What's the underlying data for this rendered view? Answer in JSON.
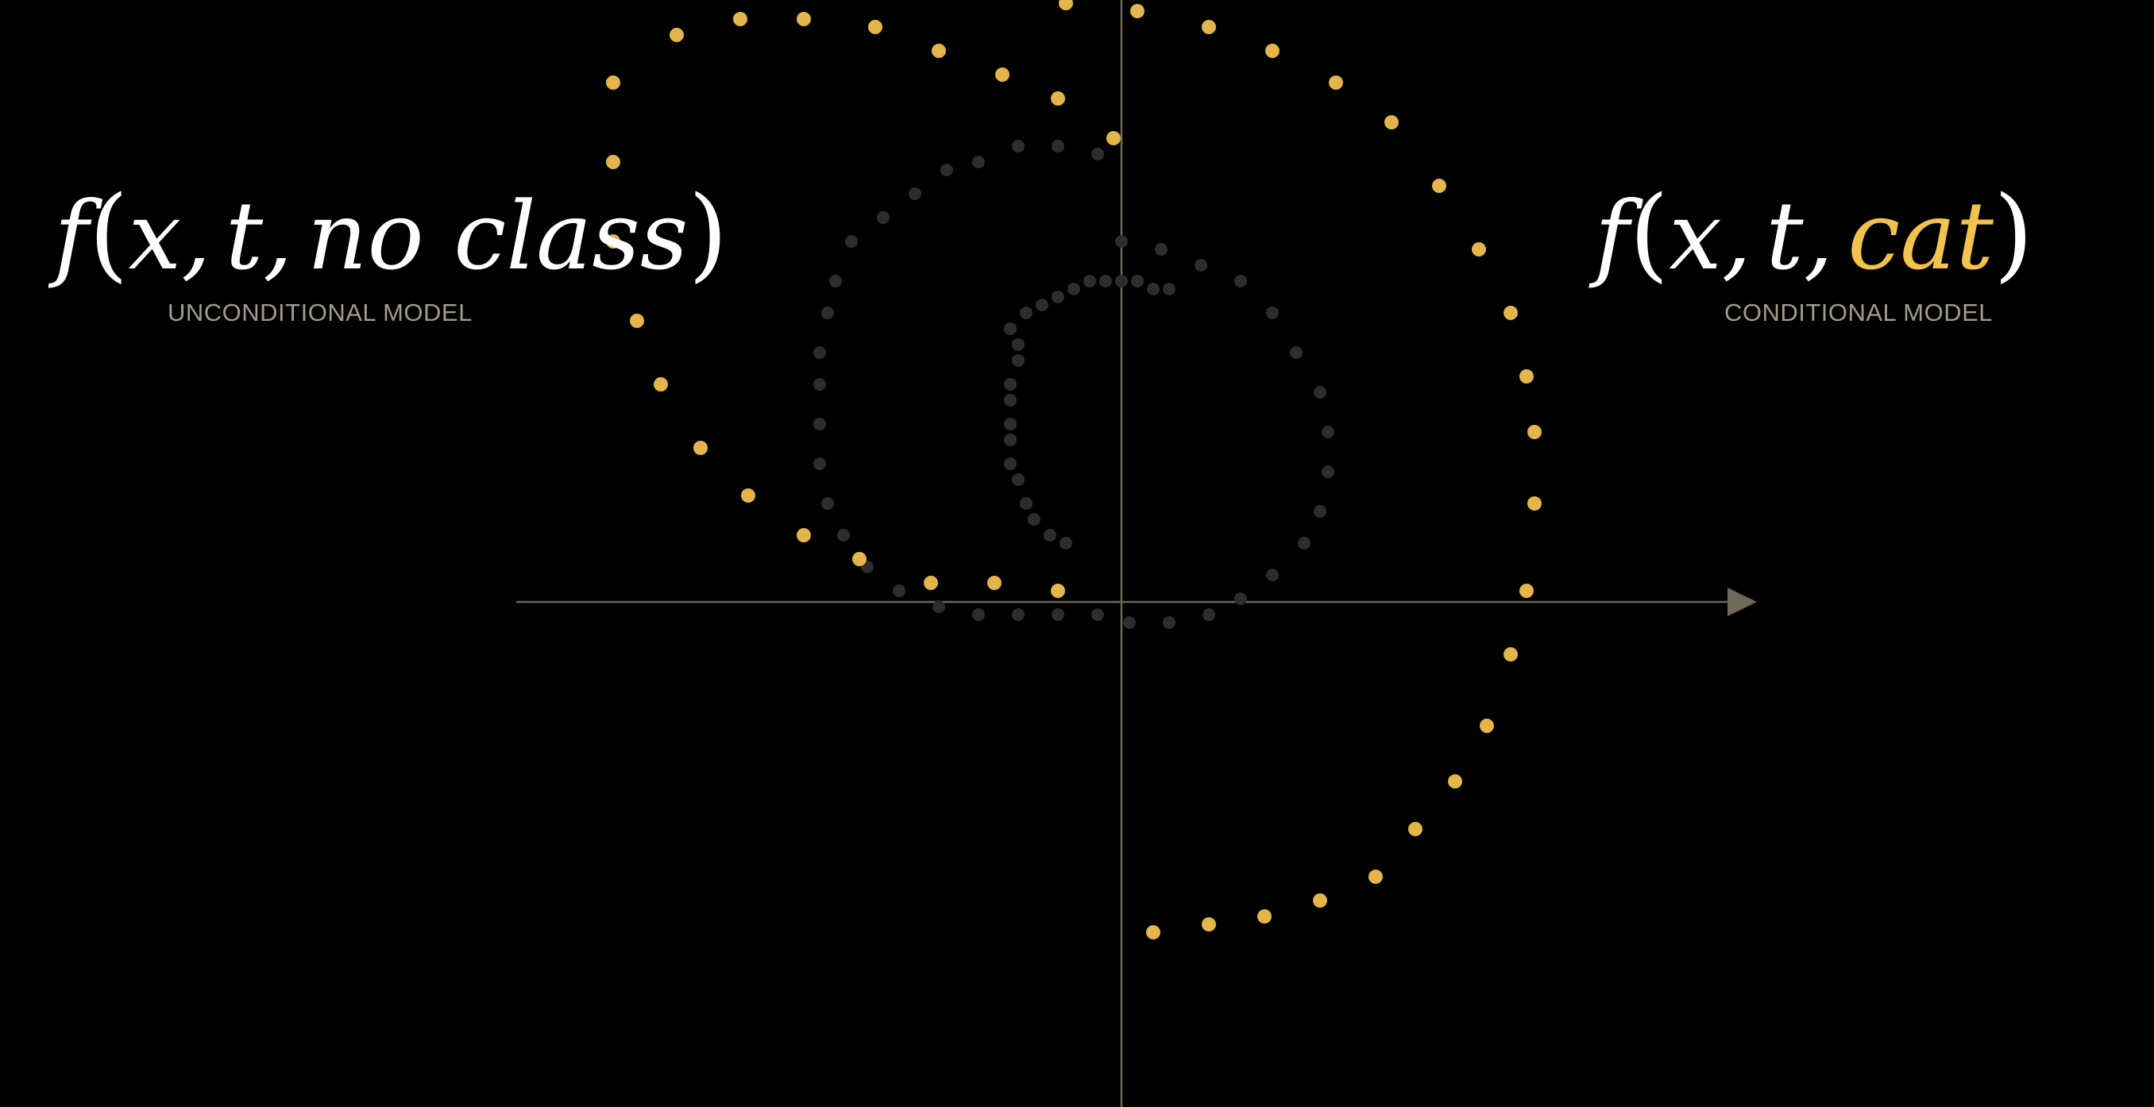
{
  "left_panel": {
    "formula": {
      "func": "f",
      "open": "(",
      "arg1": "x",
      "sep1": ",",
      "arg2": "t",
      "sep2": ",",
      "arg3": "no class",
      "close": ")"
    },
    "caption": "UNCONDITIONAL MODEL"
  },
  "right_panel": {
    "formula": {
      "func": "f",
      "open": "(",
      "arg1": "x",
      "sep1": ",",
      "arg2": "t",
      "sep2": ",",
      "arg3": "cat",
      "close": ")"
    },
    "caption": "CONDITIONAL MODEL"
  },
  "colors": {
    "background": "#000000",
    "axis": "#6e6958",
    "conditional_dot": "#e3b54a",
    "unconditional_dot": "#2d2d2d",
    "formula_text": "#ffffff",
    "highlight_text": "#f2c14e",
    "caption_text": "#a09b8c"
  },
  "scatter": {
    "axes": {
      "x_arrow": true,
      "y_arrow": false
    },
    "conditional_trajectory": [
      [
        -0.07,
        1.33
      ],
      [
        0.02,
        1.32
      ],
      [
        0.11,
        1.3
      ],
      [
        0.19,
        1.27
      ],
      [
        0.27,
        1.23
      ],
      [
        0.34,
        1.18
      ],
      [
        0.4,
        1.1
      ],
      [
        0.45,
        1.02
      ],
      [
        0.49,
        0.94
      ],
      [
        0.51,
        0.86
      ],
      [
        0.52,
        0.79
      ],
      [
        0.52,
        0.7
      ],
      [
        0.51,
        0.59
      ],
      [
        0.49,
        0.51
      ],
      [
        0.46,
        0.42
      ],
      [
        0.42,
        0.35
      ],
      [
        0.37,
        0.29
      ],
      [
        0.32,
        0.23
      ],
      [
        0.25,
        0.2
      ],
      [
        0.18,
        0.18
      ],
      [
        0.11,
        0.17
      ],
      [
        0.04,
        0.16
      ],
      [
        -0.64,
        1.23
      ],
      [
        -0.56,
        1.29
      ],
      [
        -0.48,
        1.31
      ],
      [
        -0.4,
        1.31
      ],
      [
        -0.31,
        1.3
      ],
      [
        -0.23,
        1.27
      ],
      [
        -0.15,
        1.24
      ],
      [
        -0.08,
        1.21
      ],
      [
        -0.01,
        1.16
      ],
      [
        -0.64,
        1.13
      ],
      [
        -0.64,
        1.03
      ],
      [
        -0.61,
        0.93
      ],
      [
        -0.58,
        0.85
      ],
      [
        -0.53,
        0.77
      ],
      [
        -0.47,
        0.71
      ],
      [
        -0.4,
        0.66
      ],
      [
        -0.33,
        0.63
      ],
      [
        -0.24,
        0.6
      ],
      [
        -0.16,
        0.6
      ],
      [
        -0.08,
        0.59
      ]
    ],
    "unconditional_trajectory": [
      [
        0.0,
        1.03
      ],
      [
        0.05,
        1.02
      ],
      [
        0.1,
        1.0
      ],
      [
        0.15,
        0.98
      ],
      [
        0.19,
        0.94
      ],
      [
        0.22,
        0.89
      ],
      [
        0.25,
        0.84
      ],
      [
        0.26,
        0.79
      ],
      [
        0.26,
        0.74
      ],
      [
        0.25,
        0.69
      ],
      [
        0.23,
        0.65
      ],
      [
        0.19,
        0.61
      ],
      [
        0.15,
        0.58
      ],
      [
        0.11,
        0.56
      ],
      [
        0.06,
        0.55
      ],
      [
        0.01,
        0.55
      ],
      [
        -0.03,
        0.56
      ],
      [
        -0.38,
        0.85
      ],
      [
        -0.38,
        0.8
      ],
      [
        -0.38,
        0.75
      ],
      [
        -0.37,
        0.7
      ],
      [
        -0.35,
        0.66
      ],
      [
        -0.32,
        0.62
      ],
      [
        -0.28,
        0.59
      ],
      [
        -0.23,
        0.57
      ],
      [
        -0.18,
        0.56
      ],
      [
        -0.13,
        0.56
      ],
      [
        -0.08,
        0.56
      ],
      [
        -0.34,
        1.03
      ],
      [
        -0.3,
        1.06
      ],
      [
        -0.26,
        1.09
      ],
      [
        -0.22,
        1.12
      ],
      [
        -0.18,
        1.13
      ],
      [
        -0.13,
        1.15
      ],
      [
        -0.08,
        1.15
      ],
      [
        -0.03,
        1.14
      ],
      [
        -0.38,
        0.89
      ],
      [
        -0.37,
        0.94
      ],
      [
        -0.36,
        0.98
      ],
      [
        -0.14,
        0.92
      ],
      [
        -0.12,
        0.94
      ],
      [
        -0.1,
        0.95
      ],
      [
        -0.08,
        0.96
      ],
      [
        -0.06,
        0.97
      ],
      [
        -0.04,
        0.98
      ],
      [
        -0.02,
        0.98
      ],
      [
        0.0,
        0.98
      ],
      [
        0.02,
        0.98
      ],
      [
        0.04,
        0.97
      ],
      [
        0.06,
        0.97
      ],
      [
        -0.13,
        0.9
      ],
      [
        -0.13,
        0.88
      ],
      [
        -0.14,
        0.85
      ],
      [
        -0.14,
        0.83
      ],
      [
        -0.14,
        0.8
      ],
      [
        -0.14,
        0.78
      ],
      [
        -0.14,
        0.75
      ],
      [
        -0.13,
        0.73
      ],
      [
        -0.12,
        0.7
      ],
      [
        -0.11,
        0.68
      ],
      [
        -0.09,
        0.66
      ],
      [
        -0.07,
        0.65
      ]
    ]
  }
}
